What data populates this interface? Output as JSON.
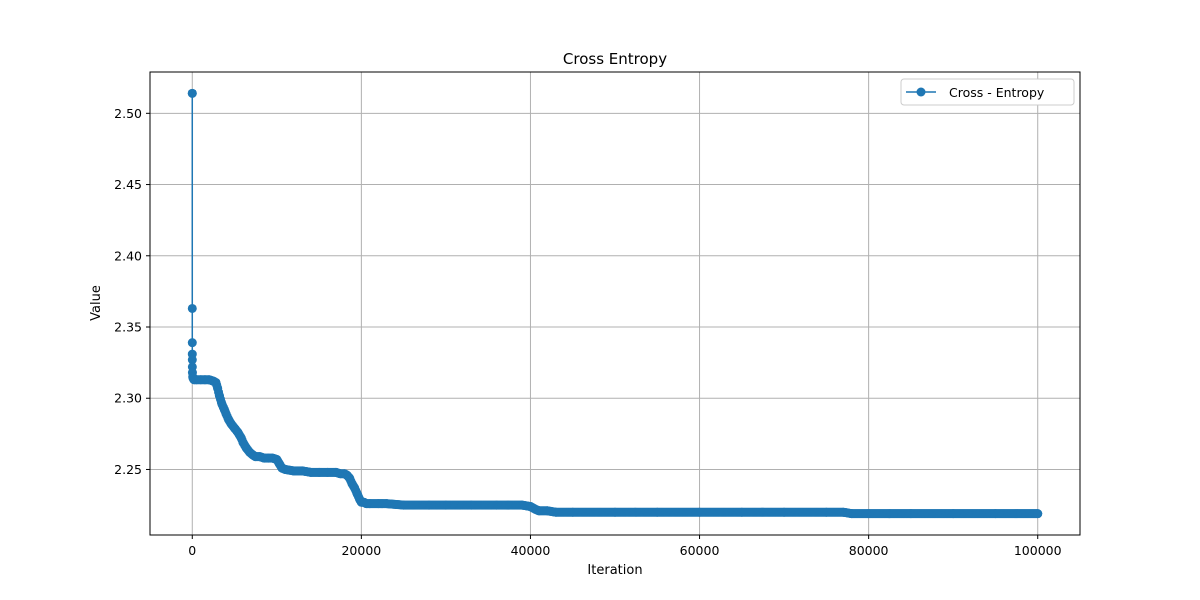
{
  "chart_data": {
    "type": "line",
    "title": "Cross Entropy",
    "xlabel": "Iteration",
    "ylabel": "Value",
    "xlim": [
      -5000,
      105000
    ],
    "ylim": [
      2.204,
      2.529
    ],
    "xticks": [
      0,
      20000,
      40000,
      60000,
      80000,
      100000
    ],
    "yticks": [
      2.25,
      2.3,
      2.35,
      2.4,
      2.45,
      2.5
    ],
    "xtick_labels": [
      "0",
      "20000",
      "40000",
      "60000",
      "80000",
      "100000"
    ],
    "ytick_labels": [
      "2.25",
      "2.30",
      "2.35",
      "2.40",
      "2.45",
      "2.50"
    ],
    "grid": true,
    "legend_position": "top-right",
    "colors": {
      "series": "#1f77b4",
      "grid": "#b0b0b0",
      "axis": "#000000"
    },
    "series": [
      {
        "name": "Cross - Entropy",
        "marker": "circle",
        "x": [
          0,
          1,
          2,
          3,
          5,
          10,
          20,
          50,
          100,
          200,
          500,
          1000,
          1500,
          2000,
          2500,
          2800,
          3000,
          3200,
          3500,
          3800,
          4000,
          4300,
          4600,
          5000,
          5400,
          5800,
          6000,
          6400,
          6800,
          7200,
          7500,
          8000,
          8500,
          9000,
          9500,
          10000,
          10300,
          10600,
          11000,
          12000,
          13000,
          14000,
          15000,
          16000,
          17000,
          17500,
          18000,
          18300,
          18600,
          18900,
          19200,
          19500,
          19800,
          20000,
          20300,
          20600,
          21000,
          22000,
          23000,
          25000,
          28000,
          30000,
          33000,
          36000,
          39000,
          40000,
          40300,
          40600,
          41000,
          42000,
          43000,
          45000,
          50000,
          55000,
          60000,
          65000,
          70000,
          75000,
          77000,
          78000,
          80000,
          85000,
          90000,
          95000,
          100000
        ],
        "y": [
          2.514,
          2.363,
          2.339,
          2.331,
          2.327,
          2.322,
          2.318,
          2.315,
          2.314,
          2.313,
          2.313,
          2.313,
          2.313,
          2.313,
          2.312,
          2.311,
          2.307,
          2.302,
          2.296,
          2.292,
          2.289,
          2.285,
          2.282,
          2.279,
          2.276,
          2.272,
          2.269,
          2.265,
          2.262,
          2.26,
          2.259,
          2.259,
          2.258,
          2.258,
          2.258,
          2.257,
          2.254,
          2.251,
          2.25,
          2.249,
          2.249,
          2.248,
          2.248,
          2.248,
          2.248,
          2.247,
          2.247,
          2.246,
          2.244,
          2.24,
          2.237,
          2.233,
          2.229,
          2.227,
          2.227,
          2.226,
          2.226,
          2.226,
          2.226,
          2.225,
          2.225,
          2.225,
          2.225,
          2.225,
          2.225,
          2.224,
          2.223,
          2.222,
          2.221,
          2.221,
          2.22,
          2.22,
          2.22,
          2.22,
          2.22,
          2.22,
          2.22,
          2.22,
          2.22,
          2.219,
          2.219,
          2.219,
          2.219,
          2.219,
          2.219
        ]
      }
    ]
  }
}
